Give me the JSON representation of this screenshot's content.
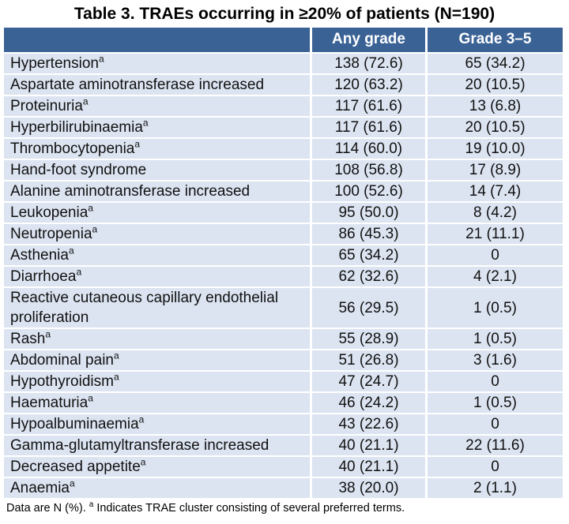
{
  "title": "Table 3. TRAEs occurring in ≥20% of patients (N=190)",
  "colors": {
    "header_bg": "#3a6295",
    "header_text": "#ffffff",
    "row_bg": "#dce4f1",
    "body_text": "#111111",
    "page_bg": "#ffffff"
  },
  "table": {
    "columns": [
      "",
      "Any grade",
      "Grade 3–5"
    ],
    "rows": [
      {
        "label": "Hypertension",
        "sup": "a",
        "any_grade": "138 (72.6)",
        "grade_3_5": "65 (34.2)"
      },
      {
        "label": "Aspartate aminotransferase increased",
        "sup": "",
        "any_grade": "120 (63.2)",
        "grade_3_5": "20 (10.5)"
      },
      {
        "label": "Proteinuria",
        "sup": "a",
        "any_grade": "117 (61.6)",
        "grade_3_5": "13 (6.8)"
      },
      {
        "label": "Hyperbilirubinaemia",
        "sup": "a",
        "any_grade": "117 (61.6)",
        "grade_3_5": "20 (10.5)"
      },
      {
        "label": "Thrombocytopenia",
        "sup": "a",
        "any_grade": "114 (60.0)",
        "grade_3_5": "19 (10.0)"
      },
      {
        "label": "Hand-foot syndrome",
        "sup": "",
        "any_grade": "108 (56.8)",
        "grade_3_5": "17 (8.9)"
      },
      {
        "label": "Alanine aminotransferase increased",
        "sup": "",
        "any_grade": "100 (52.6)",
        "grade_3_5": "14 (7.4)"
      },
      {
        "label": "Leukopenia",
        "sup": "a",
        "any_grade": "95 (50.0)",
        "grade_3_5": "8 (4.2)"
      },
      {
        "label": "Neutropenia",
        "sup": "a",
        "any_grade": "86 (45.3)",
        "grade_3_5": "21 (11.1)"
      },
      {
        "label": "Asthenia",
        "sup": "a",
        "any_grade": "65 (34.2)",
        "grade_3_5": "0"
      },
      {
        "label": "Diarrhoea",
        "sup": "a",
        "any_grade": "62 (32.6)",
        "grade_3_5": "4 (2.1)"
      },
      {
        "label": "Reactive cutaneous capillary endothelial proliferation",
        "sup": "",
        "any_grade": "56 (29.5)",
        "grade_3_5": "1 (0.5)"
      },
      {
        "label": "Rash",
        "sup": "a",
        "any_grade": "55 (28.9)",
        "grade_3_5": "1 (0.5)"
      },
      {
        "label": "Abdominal pain",
        "sup": "a",
        "any_grade": "51 (26.8)",
        "grade_3_5": "3 (1.6)"
      },
      {
        "label": "Hypothyroidism",
        "sup": "a",
        "any_grade": "47 (24.7)",
        "grade_3_5": "0"
      },
      {
        "label": "Haematuria",
        "sup": "a",
        "any_grade": "46 (24.2)",
        "grade_3_5": "1 (0.5)"
      },
      {
        "label": "Hypoalbuminaemia",
        "sup": "a",
        "any_grade": "43 (22.6)",
        "grade_3_5": "0"
      },
      {
        "label": "Gamma-glutamyltransferase increased",
        "sup": "",
        "any_grade": "40 (21.1)",
        "grade_3_5": "22 (11.6)"
      },
      {
        "label": "Decreased appetite",
        "sup": "a",
        "any_grade": "40 (21.1)",
        "grade_3_5": "0"
      },
      {
        "label": "Anaemia",
        "sup": "a",
        "any_grade": "38 (20.0)",
        "grade_3_5": "2 (1.1)"
      }
    ]
  },
  "footnote": {
    "prefix": "Data are N (%). ",
    "sup": "a",
    "text": " Indicates TRAE cluster consisting of several preferred terms."
  }
}
